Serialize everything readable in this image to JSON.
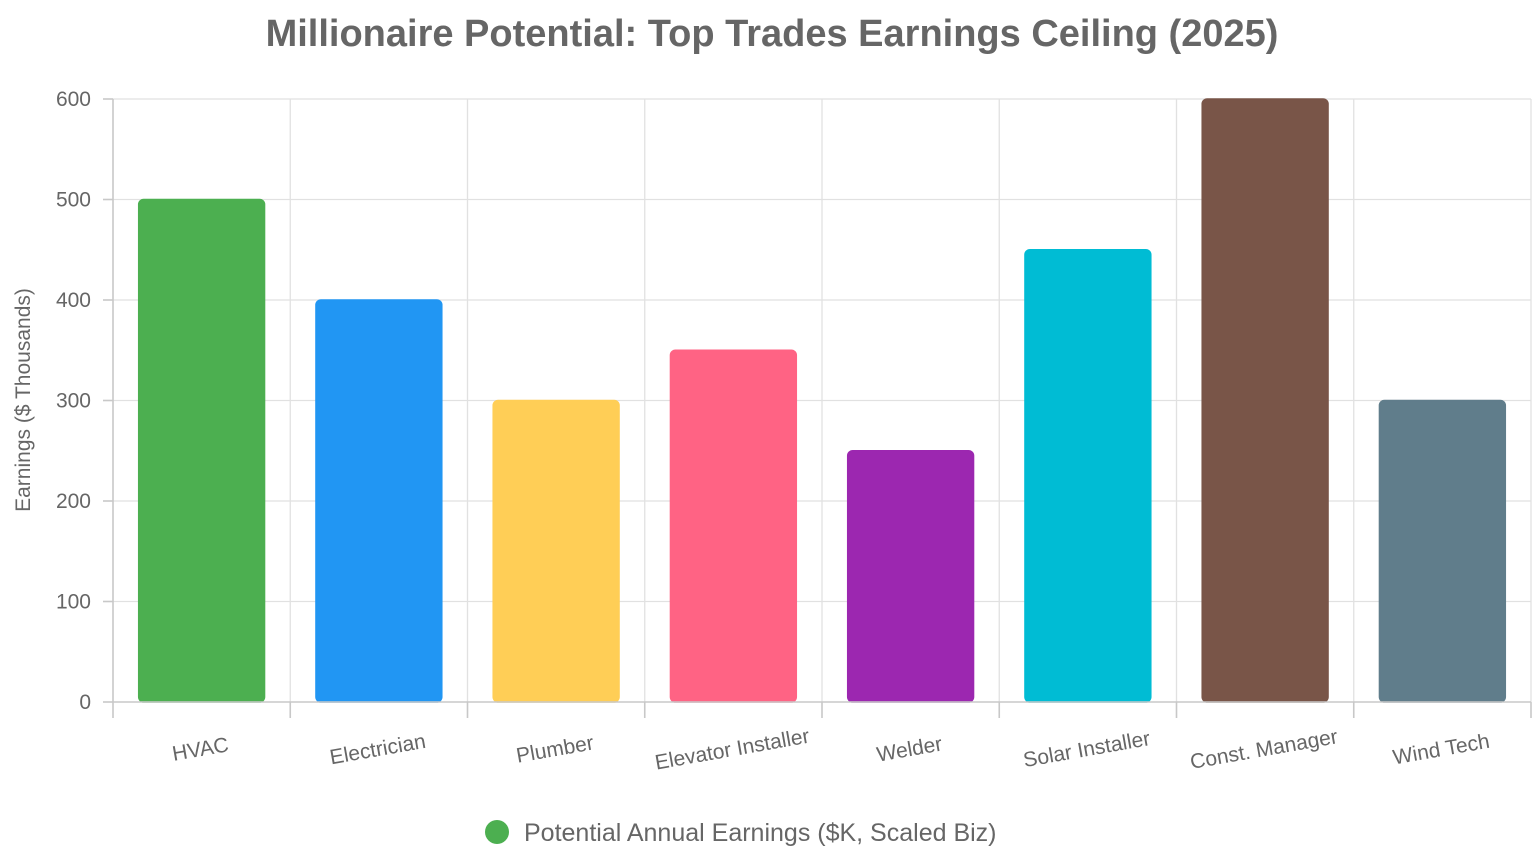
{
  "chart_data": {
    "type": "bar",
    "title": "Millionaire Potential: Top Trades Earnings Ceiling (2025)",
    "xlabel": "",
    "ylabel": "Earnings ($ Thousands)",
    "categories": [
      "HVAC",
      "Electrician",
      "Plumber",
      "Elevator Installer",
      "Welder",
      "Solar Installer",
      "Const. Manager",
      "Wind Tech"
    ],
    "series": [
      {
        "name": "Potential Annual Earnings ($K, Scaled Biz)",
        "values": [
          500,
          400,
          300,
          350,
          250,
          450,
          600,
          300
        ]
      }
    ],
    "bar_colors": [
      "#4caf50",
      "#2196f3",
      "#ffce56",
      "#ff6384",
      "#9c27b0",
      "#00bcd4",
      "#795548",
      "#607d8b"
    ],
    "legend_color": "#4caf50",
    "ylim": [
      0,
      600
    ],
    "yticks": [
      0,
      100,
      200,
      300,
      400,
      500,
      600
    ],
    "grid": true,
    "legend_position": "bottom"
  }
}
